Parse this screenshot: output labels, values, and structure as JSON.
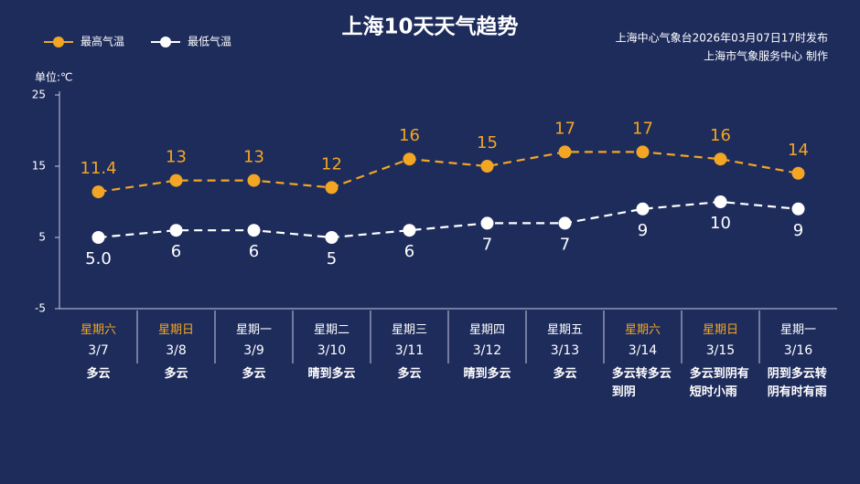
{
  "chart_data": {
    "type": "line",
    "title": "上海10天天气趋势",
    "source": [
      "上海中心气象台2026年03月07日17时发布",
      "上海市气象服务中心 制作"
    ],
    "unit_label": "单位:℃",
    "categories": [
      "3/7",
      "3/8",
      "3/9",
      "3/10",
      "3/11",
      "3/12",
      "3/13",
      "3/14",
      "3/15",
      "3/16"
    ],
    "weekdays": [
      "星期六",
      "星期日",
      "星期一",
      "星期二",
      "星期三",
      "星期四",
      "星期五",
      "星期六",
      "星期日",
      "星期一"
    ],
    "weekday_colors": [
      "#f2a623",
      "#f2a623",
      "#ffffff",
      "#ffffff",
      "#ffffff",
      "#ffffff",
      "#ffffff",
      "#f2a623",
      "#f2a623",
      "#ffffff"
    ],
    "weather": [
      "多云",
      "多云",
      "多云",
      "晴到多云",
      "多云",
      "晴到多云",
      "多云",
      "多云转多云到阴",
      "多云到阴有短时小雨",
      "阴到多云转阴有时有雨"
    ],
    "series": [
      {
        "name": "最高气温",
        "color": "#f2a623",
        "values": [
          11.4,
          13,
          13,
          12,
          16,
          15,
          17,
          17,
          16,
          14
        ]
      },
      {
        "name": "最低气温",
        "color": "#ffffff",
        "values": [
          5,
          6,
          6,
          5,
          6,
          7,
          7,
          9,
          10,
          9
        ],
        "value_labels": [
          "5.0",
          "6",
          "6",
          "5",
          "6",
          "7",
          "7",
          "9",
          "10",
          "9"
        ]
      }
    ],
    "ylim": [
      -5,
      25
    ],
    "yticks": [
      -5,
      5,
      15,
      25
    ]
  }
}
